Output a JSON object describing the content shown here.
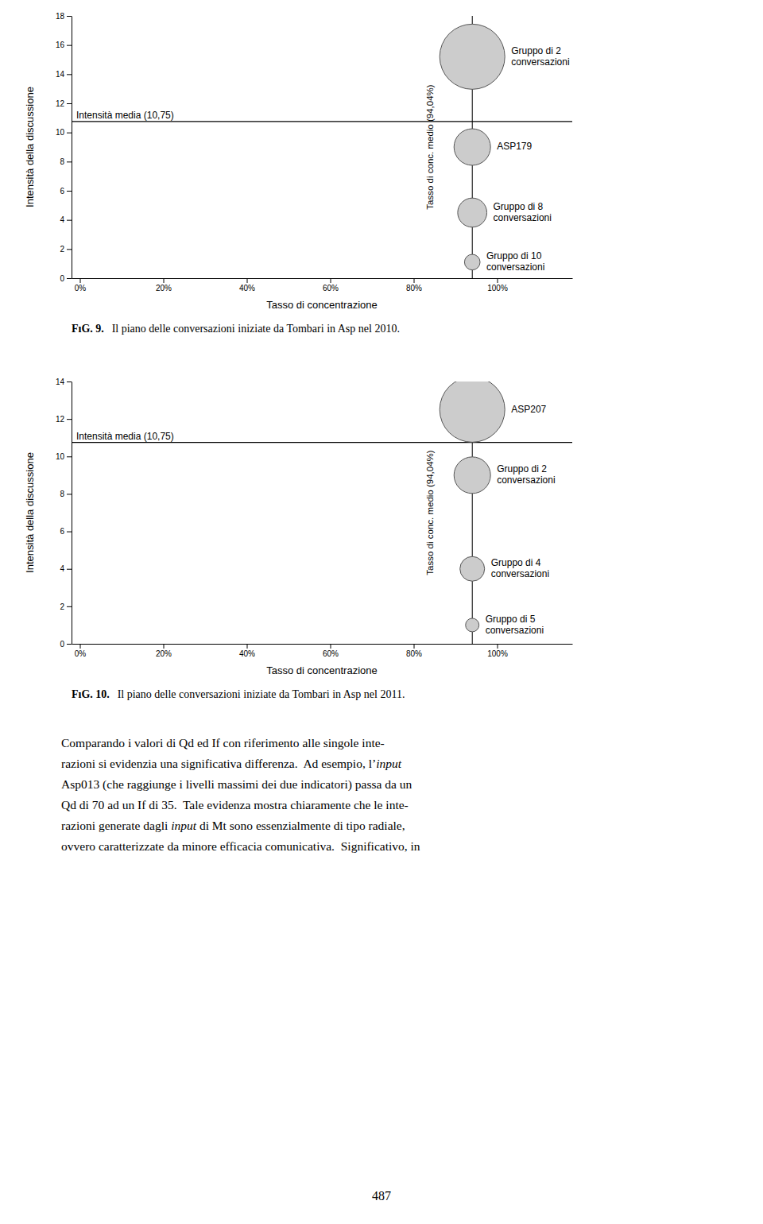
{
  "chart_data": [
    {
      "type": "bubble",
      "xlabel": "Tasso di concentrazione",
      "ylabel": "Intensità della discussione",
      "xlim": [
        -0.02,
        1.18
      ],
      "ylim": [
        0,
        18
      ],
      "xticks": [
        {
          "value": 0,
          "label": "0%"
        },
        {
          "value": 0.2,
          "label": "20%"
        },
        {
          "value": 0.4,
          "label": "40%"
        },
        {
          "value": 0.6,
          "label": "60%"
        },
        {
          "value": 0.8,
          "label": "80%"
        },
        {
          "value": 1.0,
          "label": "100%"
        }
      ],
      "yticks": [
        0,
        2,
        4,
        6,
        8,
        10,
        12,
        14,
        16,
        18
      ],
      "x": [
        0.9404,
        0.9404,
        0.9404,
        0.9404
      ],
      "values": [
        15.2,
        9.0,
        4.5,
        1.1
      ],
      "sizes": [
        3500,
        1100,
        700,
        200
      ],
      "color": "#cccccc",
      "labels": [
        [
          "Gruppo di 2",
          "conversazioni"
        ],
        [
          "ASP179"
        ],
        [
          "Gruppo di 8",
          "conversazioni"
        ],
        [
          "Gruppo di 10",
          "conversazioni"
        ]
      ],
      "hline": {
        "value": 10.75,
        "label": "Intensità media (10,75)"
      },
      "vline": {
        "value": 0.9404,
        "label": "Tasso di conc. medio (94,04%)"
      },
      "caption_label": "FıG. 9.",
      "caption": "Il piano delle conversazioni iniziate da Tombari in Asp nel 2010."
    },
    {
      "type": "bubble",
      "xlabel": "Tasso di concentrazione",
      "ylabel": "Intensità della discussione",
      "xlim": [
        -0.02,
        1.18
      ],
      "ylim": [
        0,
        14
      ],
      "xticks": [
        {
          "value": 0,
          "label": "0%"
        },
        {
          "value": 0.2,
          "label": "20%"
        },
        {
          "value": 0.4,
          "label": "40%"
        },
        {
          "value": 0.6,
          "label": "60%"
        },
        {
          "value": 0.8,
          "label": "80%"
        },
        {
          "value": 1.0,
          "label": "100%"
        }
      ],
      "yticks": [
        0,
        2,
        4,
        6,
        8,
        10,
        12,
        14
      ],
      "x": [
        0.9404,
        0.9404,
        0.9404,
        0.9404
      ],
      "values": [
        12.5,
        9.0,
        4.0,
        1.0
      ],
      "sizes": [
        3500,
        1100,
        500,
        150
      ],
      "color": "#cccccc",
      "labels": [
        [
          "ASP207"
        ],
        [
          "Gruppo di 2",
          "conversazioni"
        ],
        [
          "Gruppo di 4",
          "conversazioni"
        ],
        [
          "Gruppo di 5",
          "conversazioni"
        ]
      ],
      "hline": {
        "value": 10.75,
        "label": "Intensità media (10,75)"
      },
      "vline": {
        "value": 0.9404,
        "label": "Tasso di conc. medio (94,04%)"
      },
      "caption_label": "FıG. 10.",
      "caption": "Il piano delle conversazioni iniziate da Tombari in Asp nel 2011."
    }
  ],
  "body_text": [
    [
      {
        "text": "Comparando i valori di Qd ed If con riferimento alle singole inte-",
        "italic": false
      }
    ],
    [
      {
        "text": "razioni si evidenzia una significativa differenza.  Ad esempio, l’",
        "italic": false
      },
      {
        "text": "input",
        "italic": true
      }
    ],
    [
      {
        "text": "Asp013 (che raggiunge i livelli massimi dei due indicatori) passa da un",
        "italic": false
      }
    ],
    [
      {
        "text": "Qd di 70 ad un If di 35.  Tale evidenza mostra chiaramente che le inte-",
        "italic": false
      }
    ],
    [
      {
        "text": "razioni generate dagli ",
        "italic": false
      },
      {
        "text": "input",
        "italic": true
      },
      {
        "text": " di Mt sono essenzialmente di tipo radiale,",
        "italic": false
      }
    ],
    [
      {
        "text": "ovvero caratterizzate da minore efficacia comunicativa.  Significativo, in",
        "italic": false
      }
    ]
  ],
  "page_number": "487"
}
